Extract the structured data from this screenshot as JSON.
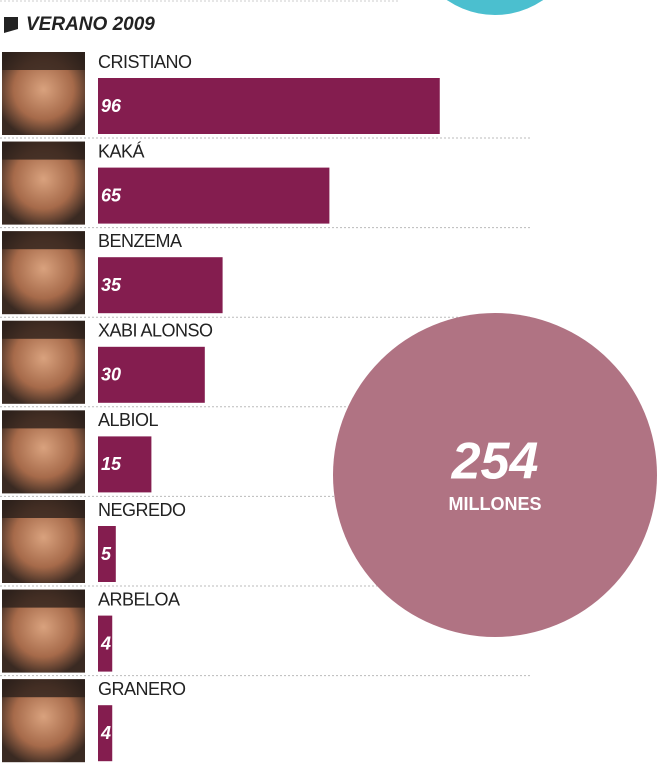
{
  "chart_data": {
    "type": "bar",
    "title": "VERANO 2009",
    "categories": [
      "CRISTIANO",
      "KAKÁ",
      "BENZEMA",
      "XABI ALONSO",
      "ALBIOL",
      "NEGREDO",
      "ARBELOA",
      "GRANERO"
    ],
    "values": [
      96,
      65,
      35,
      30,
      15,
      5,
      4,
      4
    ],
    "color": "#841d4f",
    "total": 254,
    "total_label": "MILLONES",
    "total_color": "#b07383"
  }
}
